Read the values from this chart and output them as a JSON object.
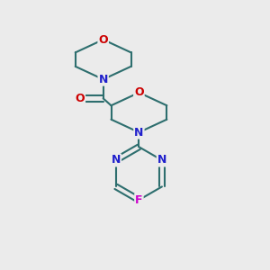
{
  "background_color": "#ebebeb",
  "bond_color": "#2d6e6e",
  "N_color": "#2020cc",
  "O_color": "#cc0000",
  "F_color": "#cc00cc",
  "line_width": 1.5,
  "figsize": [
    3.0,
    3.0
  ],
  "dpi": 100,
  "xlim": [
    0,
    10
  ],
  "ylim": [
    0,
    10
  ]
}
